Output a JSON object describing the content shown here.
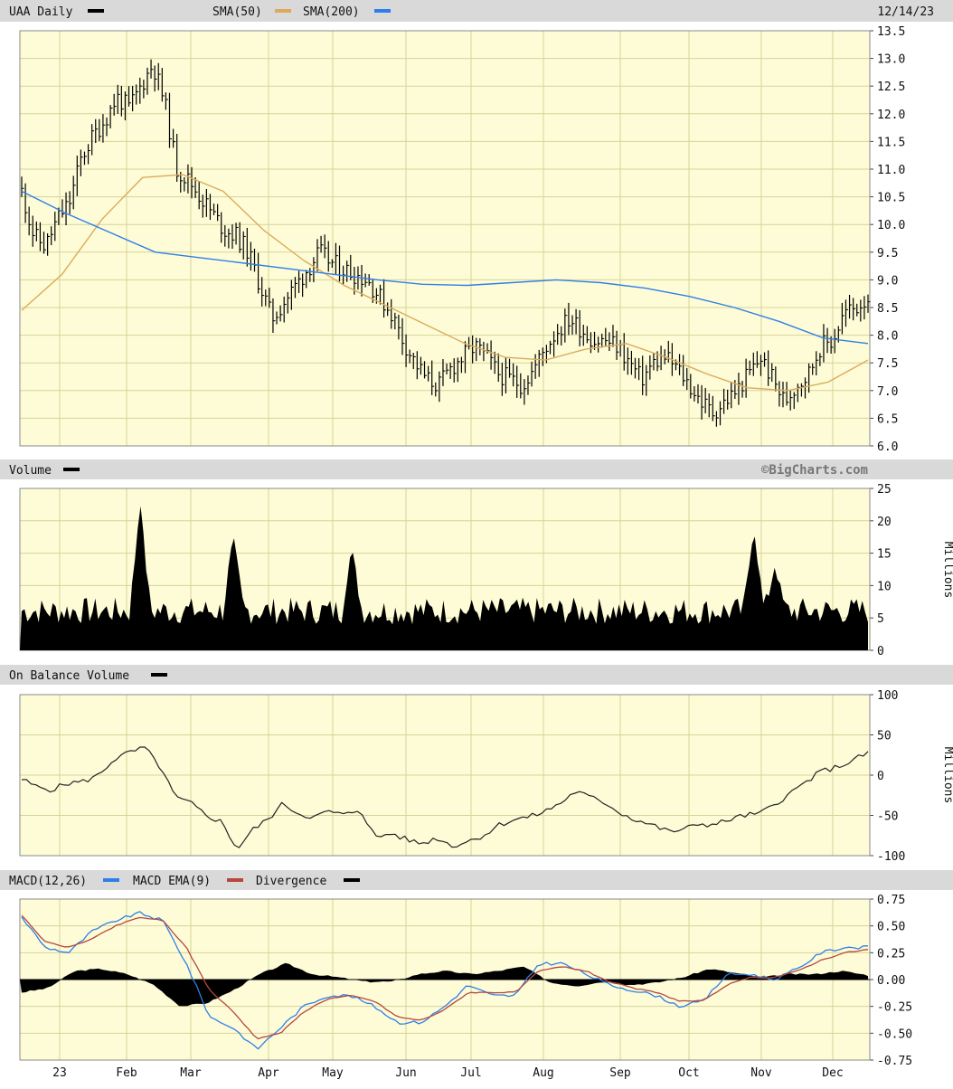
{
  "header": {
    "ticker_label": "UAA Daily",
    "sma50_label": "SMA(50)",
    "sma200_label": "SMA(200)",
    "date": "12/14/23"
  },
  "watermark": "©BigCharts.com",
  "panels": {
    "volume_title": "Volume",
    "obv_title": "On Balance Volume",
    "macd_title": "MACD(12,26)",
    "macd_ema_title": "MACD EMA(9)",
    "divergence_title": "Divergence",
    "volume_unit": "Millions",
    "obv_unit": "Millions"
  },
  "colors": {
    "price_bars": "#000000",
    "sma50": "#dcaa5c",
    "sma200": "#2f7fe8",
    "macd": "#2f7fe8",
    "macd_ema": "#b5473e",
    "divergence": "#000000",
    "panel_background": "#fdfcd6",
    "header_background": "#d9d9d9"
  },
  "chart_data": [
    {
      "type": "line",
      "name": "price",
      "x_ticks": [
        "23",
        "Feb",
        "Mar",
        "Apr",
        "May",
        "Jun",
        "Jul",
        "Aug",
        "Sep",
        "Oct",
        "Nov",
        "Dec"
      ],
      "ylim": [
        6.0,
        13.5
      ],
      "y_ticks": [
        "13.5",
        "13.0",
        "12.5",
        "12.0",
        "11.5",
        "11.0",
        "10.5",
        "10.0",
        "9.5",
        "9.0",
        "8.5",
        "8.0",
        "7.5",
        "7.0",
        "6.5",
        "6.0"
      ],
      "price_close": [
        10.6,
        9.8,
        9.6,
        10.1,
        10.4,
        11.2,
        11.6,
        11.9,
        12.3,
        12.1,
        12.5,
        12.9,
        12.2,
        11.0,
        10.8,
        10.5,
        10.2,
        9.9,
        9.8,
        9.5,
        8.9,
        8.3,
        8.6,
        8.9,
        9.2,
        9.5,
        9.3,
        9.2,
        9.1,
        9.0,
        8.7,
        8.4,
        7.9,
        7.5,
        7.2,
        7.1,
        7.4,
        7.6,
        7.8,
        7.6,
        7.3,
        7.2,
        7.1,
        7.4,
        7.8,
        8.1,
        8.3,
        8.1,
        7.9,
        7.9,
        7.8,
        7.5,
        7.2,
        7.5,
        7.6,
        7.4,
        7.1,
        6.8,
        6.6,
        6.8,
        7.0,
        7.3,
        7.6,
        7.2,
        6.8,
        7.1,
        7.3,
        7.8,
        7.9,
        8.4,
        8.5,
        8.7
      ]
    },
    {
      "type": "line",
      "name": "sma",
      "series": [
        {
          "name": "SMA(50)",
          "values": [
            8.45,
            9.1,
            10.1,
            10.85,
            10.9,
            10.6,
            9.9,
            9.35,
            8.9,
            8.55,
            8.2,
            7.85,
            7.6,
            7.55,
            7.75,
            7.85,
            7.6,
            7.3,
            7.05,
            7.0,
            7.15,
            7.55
          ]
        },
        {
          "name": "SMA(200)",
          "values": [
            10.6,
            10.2,
            9.85,
            9.5,
            9.4,
            9.3,
            9.2,
            9.1,
            9.0,
            8.92,
            8.9,
            8.95,
            9.0,
            8.95,
            8.85,
            8.7,
            8.5,
            8.25,
            7.95,
            7.85
          ]
        }
      ]
    },
    {
      "type": "bar",
      "name": "Volume",
      "ylim": [
        0,
        25
      ],
      "y_ticks": [
        "25",
        "20",
        "15",
        "10",
        "5",
        "0"
      ],
      "ylabel": "Millions",
      "peaks": [
        {
          "position": 0.14,
          "value": 23
        },
        {
          "position": 0.25,
          "value": 18
        },
        {
          "position": 0.39,
          "value": 16
        },
        {
          "position": 0.865,
          "value": 19
        },
        {
          "position": 0.89,
          "value": 13
        }
      ],
      "baseline_range": [
        4,
        10
      ]
    },
    {
      "type": "line",
      "name": "On Balance Volume",
      "ylim": [
        -100,
        100
      ],
      "y_ticks": [
        "100",
        "50",
        "0",
        "-50",
        "-100"
      ],
      "ylabel": "Millions",
      "values": [
        -5,
        -15,
        -18,
        -10,
        -8,
        0,
        20,
        28,
        34,
        10,
        -28,
        -35,
        -50,
        -58,
        -92,
        -68,
        -55,
        -35,
        -48,
        -52,
        -45,
        -50,
        -42,
        -78,
        -72,
        -80,
        -85,
        -78,
        -88,
        -82,
        -75,
        -62,
        -55,
        -52,
        -45,
        -35,
        -20,
        -28,
        -35,
        -48,
        -56,
        -62,
        -70,
        -68,
        -60,
        -62,
        -55,
        -50,
        -48,
        -35,
        -22,
        -8,
        5,
        10,
        18,
        28
      ]
    },
    {
      "type": "line",
      "name": "MACD",
      "ylim": [
        -0.75,
        0.75
      ],
      "y_ticks": [
        "0.75",
        "0.50",
        "0.25",
        "0.00",
        "-0.25",
        "-0.50",
        "-0.75"
      ],
      "series": [
        {
          "name": "MACD(12,26)",
          "values": [
            0.58,
            0.3,
            0.25,
            0.45,
            0.55,
            0.62,
            0.55,
            0.15,
            -0.35,
            -0.45,
            -0.65,
            -0.45,
            -0.25,
            -0.15,
            -0.15,
            -0.25,
            -0.4,
            -0.4,
            -0.25,
            -0.05,
            -0.15,
            -0.15,
            0.15,
            0.15,
            0.05,
            -0.05,
            -0.1,
            -0.15,
            -0.25,
            -0.2,
            0.05,
            0.05,
            0.0,
            0.1,
            0.25,
            0.3,
            0.3
          ]
        },
        {
          "name": "MACD EMA(9)",
          "values": [
            0.6,
            0.35,
            0.3,
            0.38,
            0.5,
            0.58,
            0.55,
            0.3,
            -0.1,
            -0.3,
            -0.55,
            -0.5,
            -0.3,
            -0.18,
            -0.15,
            -0.2,
            -0.35,
            -0.38,
            -0.28,
            -0.12,
            -0.12,
            -0.12,
            0.08,
            0.12,
            0.08,
            -0.02,
            -0.08,
            -0.12,
            -0.2,
            -0.2,
            -0.05,
            0.02,
            0.02,
            0.08,
            0.18,
            0.25,
            0.28
          ]
        },
        {
          "name": "Divergence",
          "values": [
            -0.12,
            -0.08,
            0.08,
            0.1,
            0.05,
            -0.05,
            -0.25,
            -0.22,
            -0.1,
            0.05,
            0.15,
            0.05,
            0.02,
            -0.02,
            -0.02,
            0.05,
            0.08,
            0.05,
            0.08,
            0.12,
            -0.03,
            -0.06,
            -0.02,
            -0.05,
            -0.03,
            0.02,
            0.1,
            0.06,
            0.02,
            0.05,
            0.05,
            0.08,
            0.04
          ]
        }
      ]
    }
  ]
}
